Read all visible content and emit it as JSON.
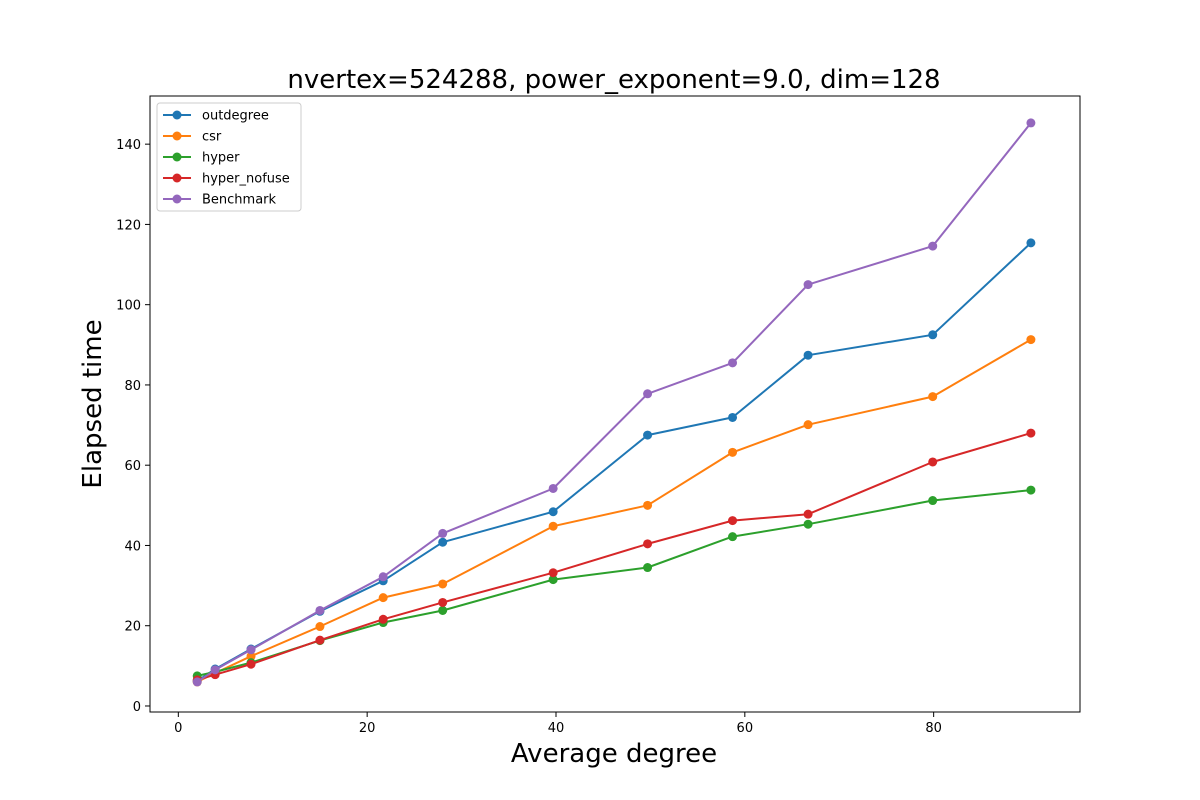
{
  "chart_data": {
    "type": "line",
    "title": "nvertex=524288, power_exponent=9.0, dim=128",
    "xlabel": "Average degree",
    "ylabel": "Elapsed time",
    "xlim": [
      -3,
      95.5
    ],
    "ylim": [
      -1.5,
      152
    ],
    "xticks": [
      0,
      20,
      40,
      60,
      80
    ],
    "yticks": [
      0,
      20,
      40,
      60,
      80,
      100,
      120,
      140
    ],
    "grid": false,
    "legend_position": "upper left",
    "x": [
      2,
      3.9,
      7.7,
      15,
      21.7,
      28,
      39.7,
      49.7,
      58.7,
      66.7,
      79.9,
      90.3
    ],
    "series": [
      {
        "name": "outdegree",
        "color": "#1f77b4",
        "values": [
          6.2,
          9.2,
          14.2,
          23.6,
          31.2,
          40.8,
          48.4,
          67.5,
          71.9,
          87.4,
          92.5,
          115.4
        ]
      },
      {
        "name": "csr",
        "color": "#ff7f0e",
        "values": [
          6.0,
          8.2,
          12.4,
          19.8,
          27.0,
          30.4,
          44.8,
          50.0,
          63.2,
          70.1,
          77.1,
          91.3
        ]
      },
      {
        "name": "hyper",
        "color": "#2ca02c",
        "values": [
          7.5,
          8.5,
          10.8,
          16.3,
          20.8,
          23.8,
          31.5,
          34.5,
          42.2,
          45.3,
          51.2,
          53.8
        ]
      },
      {
        "name": "hyper_nofuse",
        "color": "#d62728",
        "values": [
          6.5,
          7.8,
          10.4,
          16.4,
          21.6,
          25.8,
          33.2,
          40.4,
          46.2,
          47.8,
          60.8,
          68.0
        ]
      },
      {
        "name": "Benchmark",
        "color": "#9467bd",
        "values": [
          6.0,
          9.0,
          14.0,
          23.8,
          32.2,
          43.0,
          54.2,
          77.8,
          85.5,
          105.0,
          114.6,
          145.3
        ]
      }
    ]
  }
}
